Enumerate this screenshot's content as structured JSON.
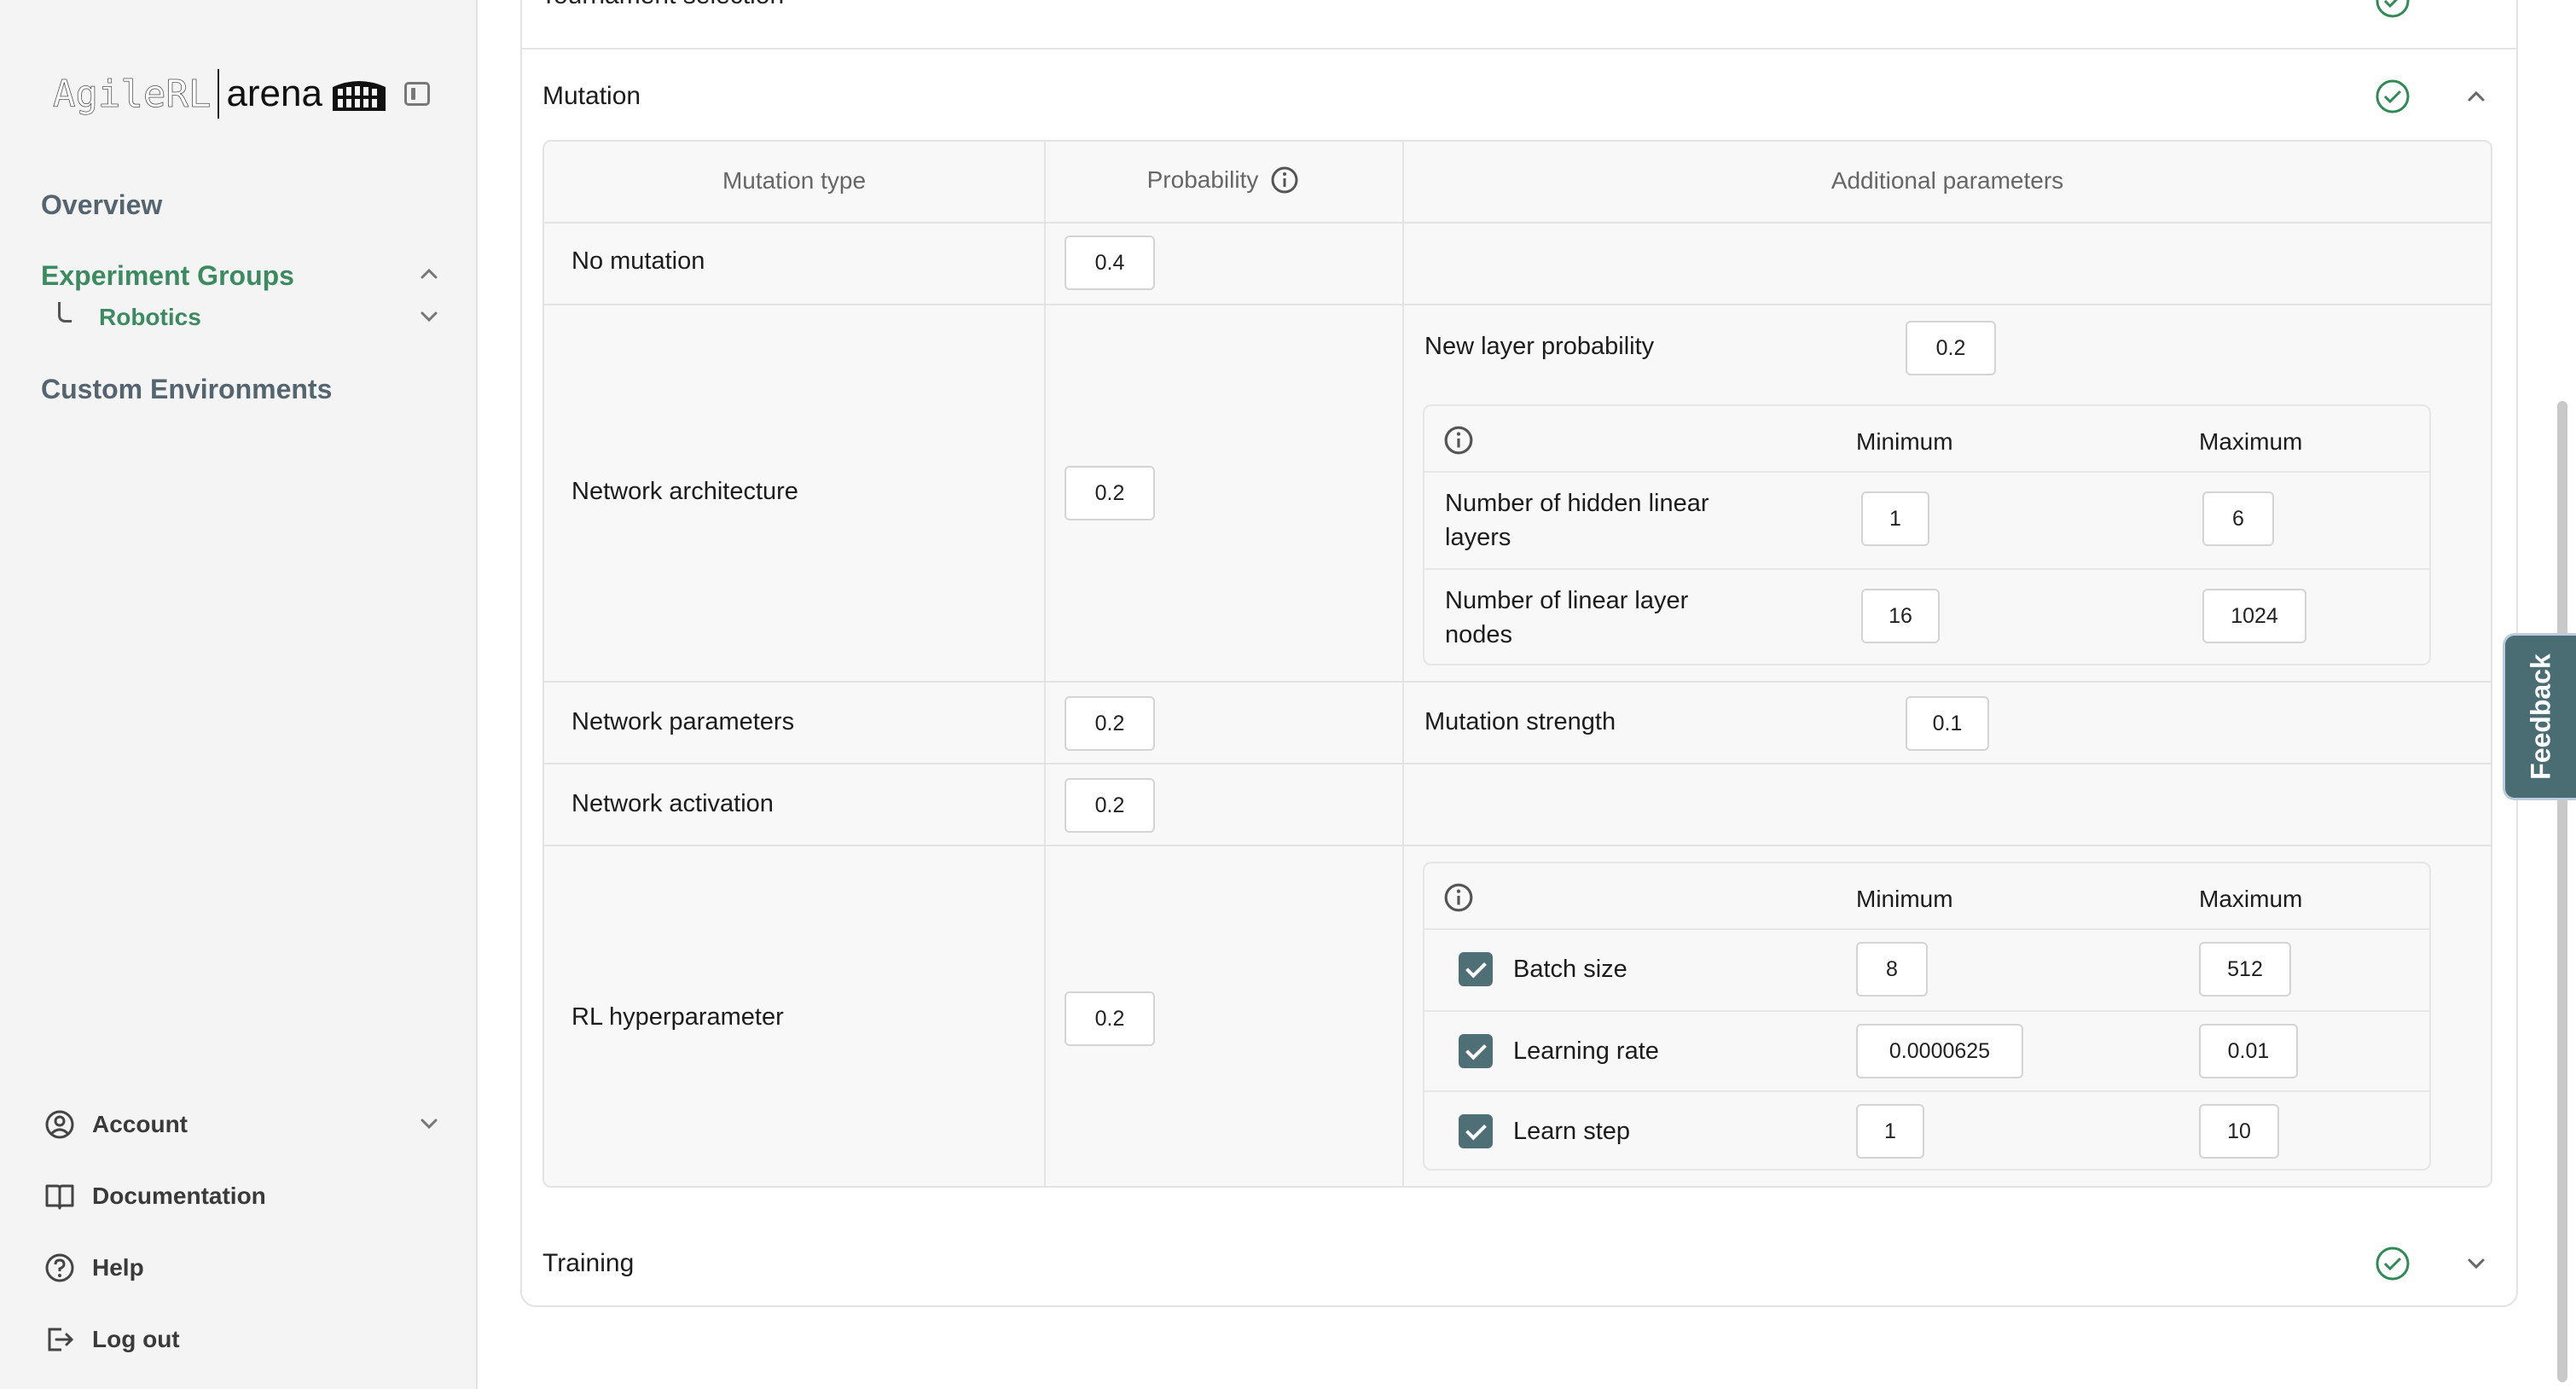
{
  "brand": {
    "logo_text": "AgileRL",
    "product": "arena"
  },
  "sidebar": {
    "overview": "Overview",
    "experiment_groups": "Experiment Groups",
    "robotics": "Robotics",
    "custom_environments": "Custom Environments",
    "account": "Account",
    "documentation": "Documentation",
    "help": "Help",
    "logout": "Log out"
  },
  "sections": {
    "previous": "Tournament selection",
    "mutation": "Mutation",
    "training": "Training"
  },
  "mutation_table": {
    "headers": {
      "type": "Mutation type",
      "probability": "Probability",
      "additional": "Additional parameters"
    },
    "rows": {
      "no_mutation": {
        "label": "No mutation",
        "probability": "0.4"
      },
      "network_architecture": {
        "label": "Network architecture",
        "probability": "0.2",
        "new_layer_label": "New layer probability",
        "new_layer_value": "0.2",
        "min_header": "Minimum",
        "max_header": "Maximum",
        "hidden_layers": {
          "label": "Number of hidden linear layers",
          "min": "1",
          "max": "6"
        },
        "layer_nodes": {
          "label": "Number of linear layer nodes",
          "min": "16",
          "max": "1024"
        }
      },
      "network_parameters": {
        "label": "Network parameters",
        "probability": "0.2",
        "strength_label": "Mutation strength",
        "strength_value": "0.1"
      },
      "network_activation": {
        "label": "Network activation",
        "probability": "0.2"
      },
      "rl_hyperparameter": {
        "label": "RL hyperparameter",
        "probability": "0.2",
        "min_header": "Minimum",
        "max_header": "Maximum",
        "batch_size": {
          "label": "Batch size",
          "min": "8",
          "max": "512",
          "checked": true
        },
        "learning_rate": {
          "label": "Learning rate",
          "min": "0.0000625",
          "max": "0.01",
          "checked": true
        },
        "learn_step": {
          "label": "Learn step",
          "min": "1",
          "max": "10",
          "checked": true
        }
      }
    }
  },
  "feedback": "Feedback",
  "colors": {
    "accent_green": "#3b8a60",
    "checkbox": "#4e6f76",
    "feedback_bg": "#4a6c73"
  }
}
